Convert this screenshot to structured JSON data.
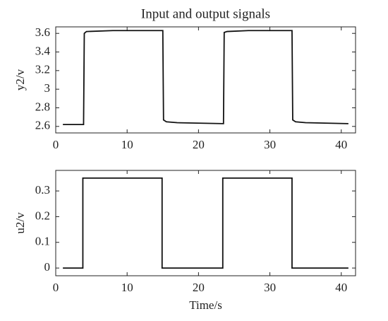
{
  "chart_data": [
    {
      "type": "line",
      "title": "Input and output signals",
      "y_label": "y2/v",
      "x": [
        1,
        3.9,
        4.0,
        4.3,
        8,
        15,
        15.1,
        15.5,
        17,
        23.5,
        23.6,
        24,
        27,
        33.1,
        33.2,
        33.6,
        35,
        41
      ],
      "values": [
        2.62,
        2.62,
        3.6,
        3.62,
        3.63,
        3.63,
        2.67,
        2.65,
        2.64,
        2.63,
        3.61,
        3.62,
        3.63,
        3.63,
        2.67,
        2.65,
        2.64,
        2.63
      ],
      "color": "#111111",
      "xlim": [
        0,
        42
      ],
      "xticks": [
        0,
        10,
        20,
        30,
        40
      ],
      "ylim": [
        2.53,
        3.67
      ],
      "yticks": [
        2.6,
        2.8,
        3,
        3.2,
        3.4,
        3.6
      ]
    },
    {
      "type": "line",
      "x_label": "Time/s",
      "y_label": "u2/v",
      "x": [
        1,
        3.8,
        3.8,
        14.9,
        14.9,
        23.4,
        23.4,
        33.1,
        33.1,
        41
      ],
      "values": [
        0,
        0,
        0.35,
        0.35,
        0,
        0,
        0.35,
        0.35,
        0,
        0
      ],
      "color": "#111111",
      "xlim": [
        0,
        42
      ],
      "xticks": [
        0,
        10,
        20,
        30,
        40
      ],
      "ylim": [
        -0.03,
        0.38
      ],
      "yticks": [
        0,
        0.1,
        0.2,
        0.3
      ]
    }
  ]
}
